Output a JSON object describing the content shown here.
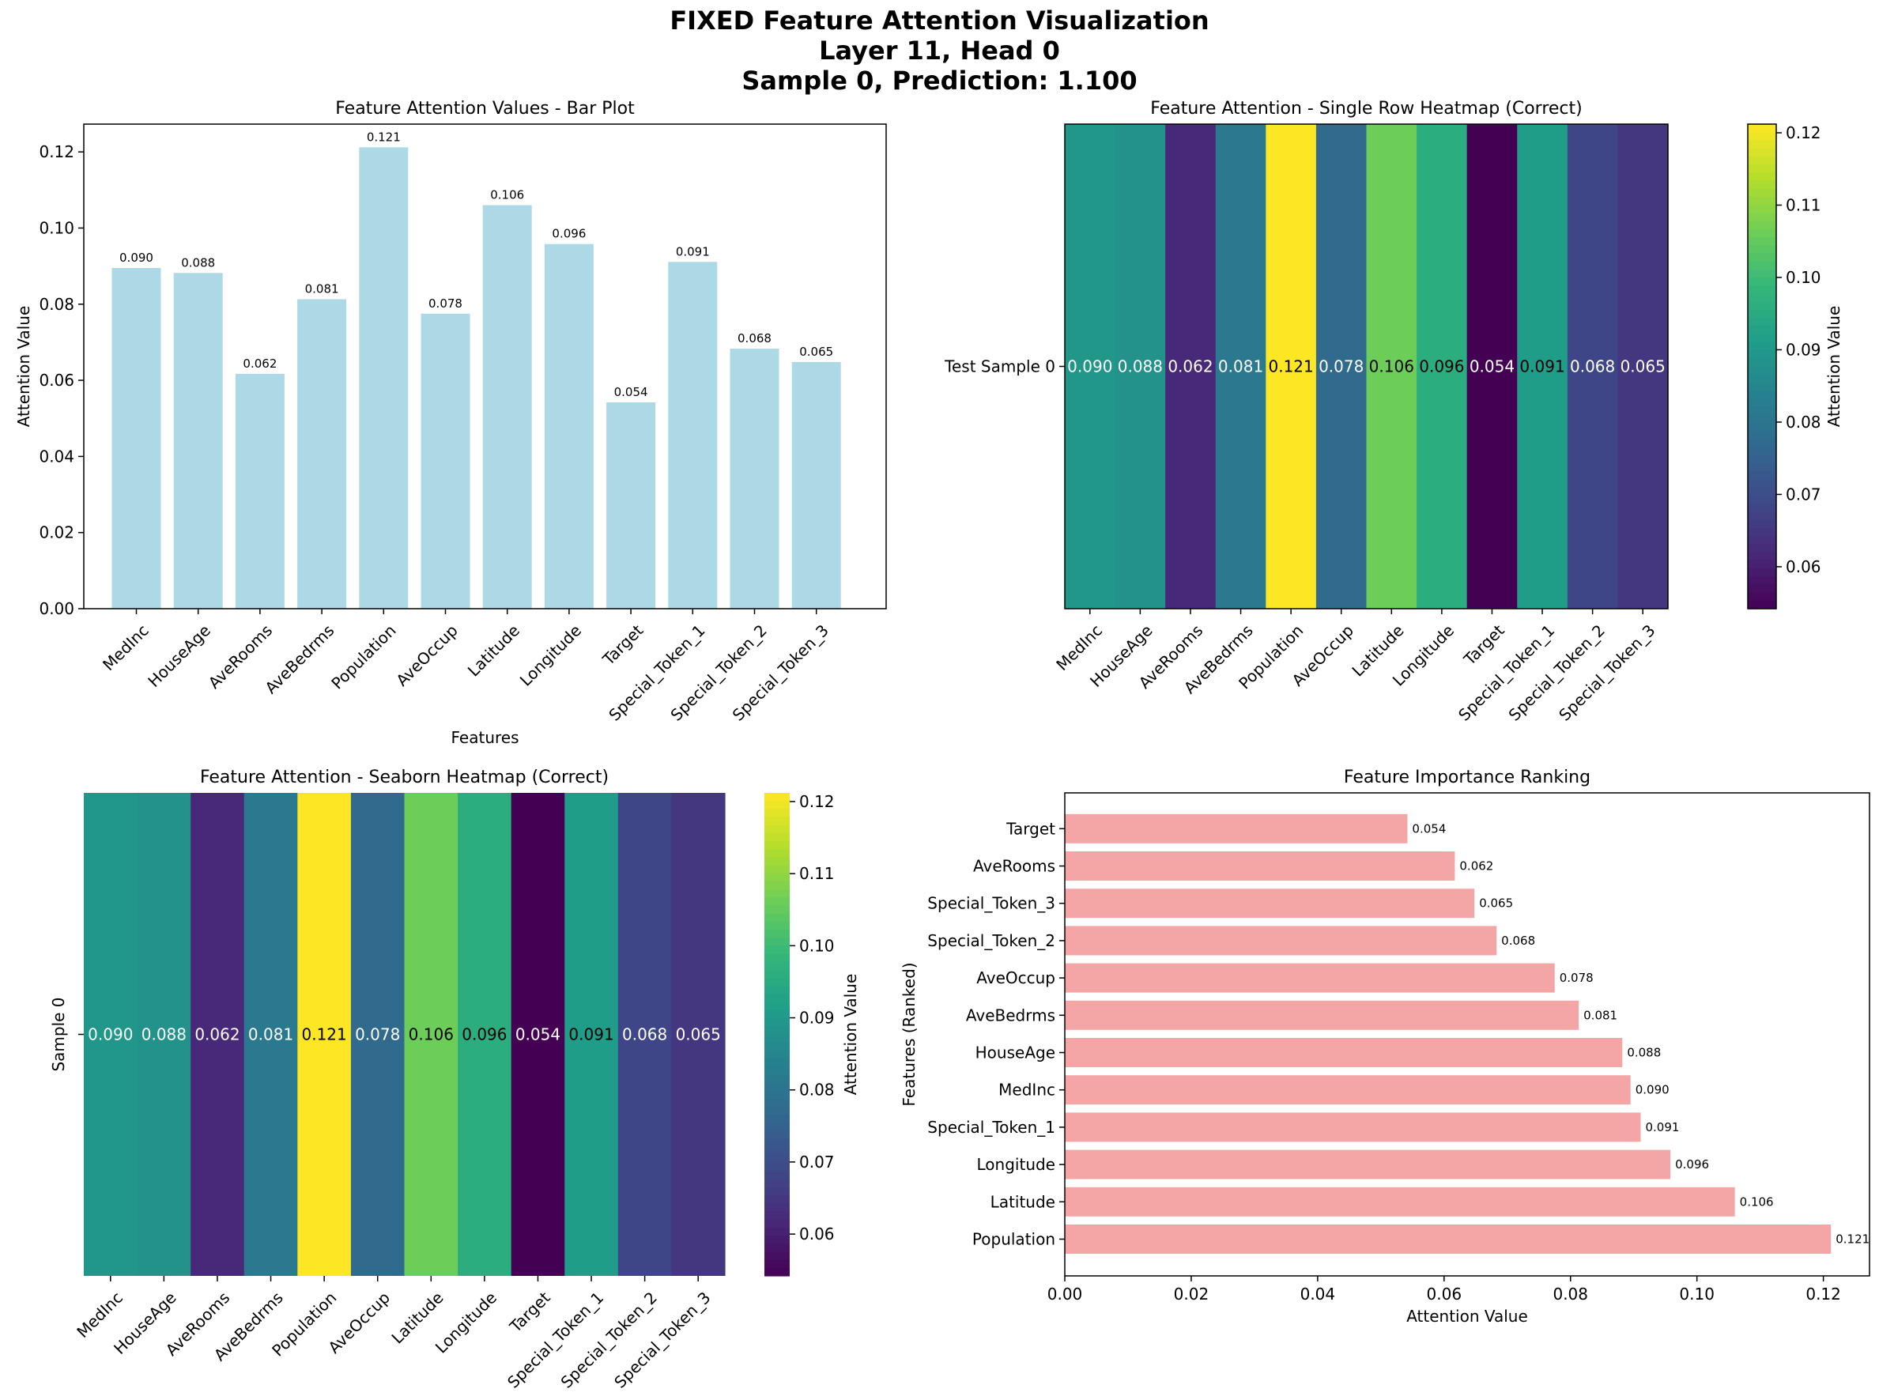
{
  "title_lines": [
    "FIXED Feature Attention Visualization",
    "Layer 11, Head 0",
    "Sample 0, Prediction: 1.100"
  ],
  "colors": {
    "bar": "#add8e6",
    "rank_bar": "#f4a6a6",
    "colormap": "viridis"
  },
  "chart_data": [
    {
      "type": "bar",
      "title": "Feature Attention Values - Bar Plot",
      "xlabel": "Features",
      "ylabel": "Attention Value",
      "categories": [
        "MedInc",
        "HouseAge",
        "AveRooms",
        "AveBedrms",
        "Population",
        "AveOccup",
        "Latitude",
        "Longitude",
        "Target",
        "Special_Token_1",
        "Special_Token_2",
        "Special_Token_3"
      ],
      "values": [
        0.0895,
        0.0882,
        0.0617,
        0.0813,
        0.1212,
        0.0775,
        0.106,
        0.0958,
        0.0542,
        0.0911,
        0.0683,
        0.0648
      ],
      "value_labels": [
        "0.090",
        "0.088",
        "0.062",
        "0.081",
        "0.121",
        "0.078",
        "0.106",
        "0.096",
        "0.054",
        "0.091",
        "0.068",
        "0.065"
      ],
      "yticks": [
        "0.00",
        "0.02",
        "0.04",
        "0.06",
        "0.08",
        "0.10",
        "0.12"
      ],
      "ylim": [
        0,
        0.1273
      ]
    },
    {
      "type": "heatmap",
      "title": "Feature Attention - Single Row Heatmap (Correct)",
      "row_label": "Test Sample 0",
      "colorbar_label": "Attention Value",
      "colorbar_ticks": [
        "0.06",
        "0.07",
        "0.08",
        "0.09",
        "0.10",
        "0.11",
        "0.12"
      ],
      "vmin": 0.0542,
      "vmax": 0.1212
    },
    {
      "type": "heatmap",
      "title": "Feature Attention - Seaborn Heatmap (Correct)",
      "row_label": "Sample 0",
      "colorbar_label": "Attention Value",
      "colorbar_ticks": [
        "0.06",
        "0.07",
        "0.08",
        "0.09",
        "0.10",
        "0.11",
        "0.12"
      ],
      "vmin": 0.0542,
      "vmax": 0.1212
    },
    {
      "type": "bar",
      "orientation": "horizontal",
      "title": "Feature Importance Ranking",
      "xlabel": "Attention Value",
      "ylabel": "Features (Ranked)",
      "categories": [
        "Population",
        "Latitude",
        "Longitude",
        "Special_Token_1",
        "MedInc",
        "HouseAge",
        "AveBedrms",
        "AveOccup",
        "Special_Token_2",
        "Special_Token_3",
        "AveRooms",
        "Target"
      ],
      "values": [
        0.1212,
        0.106,
        0.0958,
        0.0911,
        0.0895,
        0.0882,
        0.0813,
        0.0775,
        0.0683,
        0.0648,
        0.0617,
        0.0542
      ],
      "value_labels": [
        "0.121",
        "0.106",
        "0.096",
        "0.091",
        "0.090",
        "0.088",
        "0.081",
        "0.078",
        "0.068",
        "0.065",
        "0.062",
        "0.054"
      ],
      "xticks": [
        "0.00",
        "0.02",
        "0.04",
        "0.06",
        "0.08",
        "0.10",
        "0.12"
      ],
      "xlim": [
        0,
        0.1273
      ]
    }
  ]
}
